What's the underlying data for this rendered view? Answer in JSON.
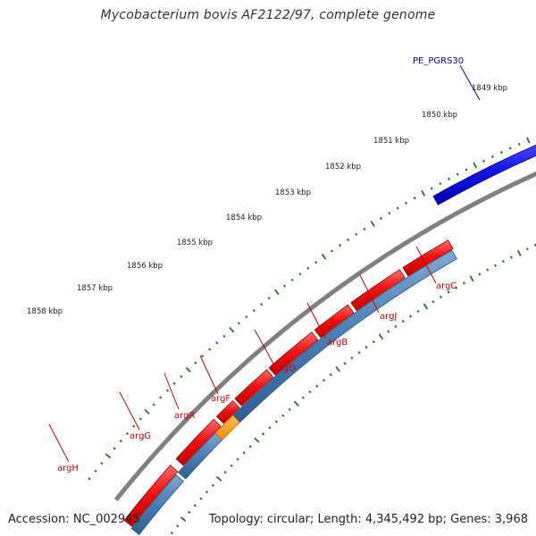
{
  "title": "Mycobacterium bovis AF2122/97, complete genome",
  "footer": {
    "accession": "Accession: NC_002945",
    "summary": "Topology: circular; Length: 4,345,492 bp; Genes: 3,968"
  },
  "colors": {
    "backbone": "#808080",
    "forward_cds": "#ee1111",
    "reverse_cds": "#1111dd",
    "cds_row": "#4a7db3",
    "gene_highlight": "#ff9a22",
    "ticks": "#227722",
    "gene_label": "#cc0000",
    "feature_label": "#0000cc"
  },
  "scale": {
    "ticks": [
      "1849 kbp",
      "1850 kbp",
      "1851 kbp",
      "1852 kbp",
      "1853 kbp",
      "1854 kbp",
      "1855 kbp",
      "1856 kbp",
      "1857 kbp",
      "1858 kbp"
    ]
  },
  "features": {
    "outer": [
      {
        "name": "PE_PGRS30"
      }
    ],
    "inner": [
      {
        "name": "argC"
      },
      {
        "name": "argJ"
      },
      {
        "name": "argB"
      },
      {
        "name": "argD"
      },
      {
        "name": "argF"
      },
      {
        "name": "argR"
      },
      {
        "name": "argG"
      },
      {
        "name": "argH"
      }
    ]
  }
}
